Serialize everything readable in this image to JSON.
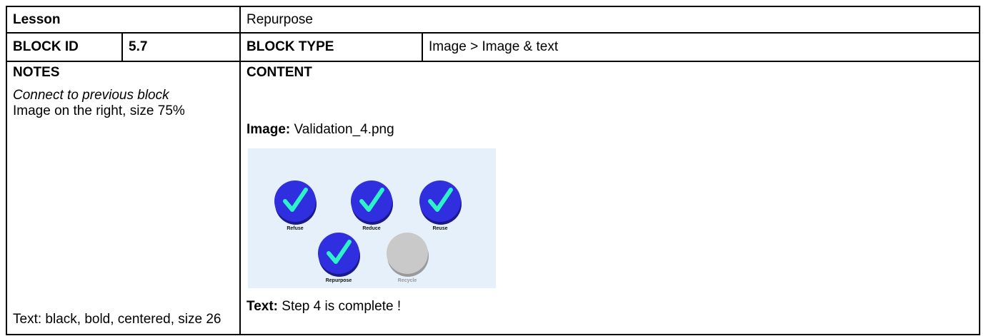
{
  "table": {
    "rows": [
      [
        "Lesson",
        "Repurpose"
      ],
      [
        "BLOCK ID",
        "5.7",
        "BLOCK TYPE",
        "Image > Image & text"
      ]
    ]
  },
  "notes": {
    "heading": "NOTES",
    "items": [
      "Connect to previous block",
      "Image on the right, size 75%",
      "Text: black, bold, centered, size 26"
    ]
  },
  "content": {
    "heading": "CONTENT",
    "image_label": "Image:",
    "image_file": "Validation_4.png",
    "image_buttons": [
      "Refuse",
      "Reduce",
      "Reuse",
      "Repurpose",
      "Recycle"
    ],
    "text_label": "Text:",
    "text_value": "Step 4 is complete !"
  }
}
